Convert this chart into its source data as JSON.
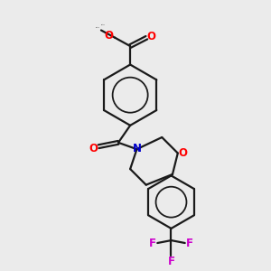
{
  "bg_color": "#ebebeb",
  "bond_color": "#1a1a1a",
  "bond_width": 1.6,
  "atom_colors": {
    "O": "#ff0000",
    "N": "#0000cc",
    "F": "#cc00cc",
    "C": "#1a1a1a"
  },
  "font_size_atom": 8.5,
  "font_size_methyl": 7.5
}
